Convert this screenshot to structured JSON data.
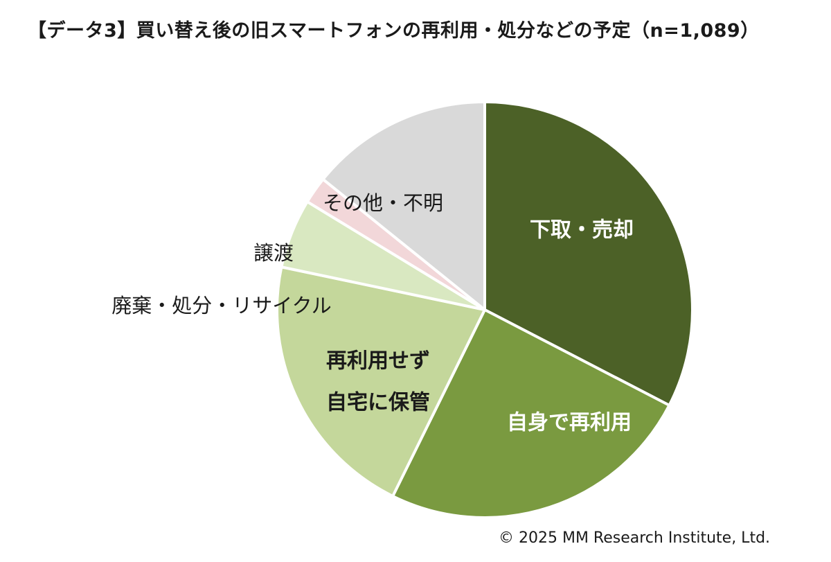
{
  "title": "【データ3】買い替え後の旧スマートフォンの再利用・処分などの予定（n=1,089）",
  "copyright": "© 2025 MM Research Institute, Ltd.",
  "chart_data": {
    "type": "pie",
    "title": "【データ3】買い替え後の旧スマートフォンの再利用・処分などの予定（n=1,089）",
    "unit": "%",
    "start": "12 o'clock, clockwise",
    "slices": [
      {
        "label": "下取・売却",
        "value": 32.6,
        "color": "#4c6127",
        "label_color": "#ffffff",
        "label_weight": "bold"
      },
      {
        "label": "自身で再利用",
        "value": 24.7,
        "color": "#7a9a40",
        "label_color": "#ffffff",
        "label_weight": "bold"
      },
      {
        "label": "再利用せず\n自宅に保管",
        "value": 21.0,
        "color": "#c4d79b",
        "label_color": "#1a1a1a",
        "label_weight": "bold"
      },
      {
        "label": "廃棄・処分・リサイクル",
        "value": 5.4,
        "color": "#d9e8c1",
        "label_color": "#1a1a1a",
        "label_weight": "normal"
      },
      {
        "label": "譲渡",
        "value": 2.1,
        "color": "#f2d7d9",
        "label_color": "#1a1a1a",
        "label_weight": "normal"
      },
      {
        "label": "その他・不明",
        "value": 14.2,
        "color": "#d9d9d9",
        "label_color": "#1a1a1a",
        "label_weight": "normal"
      }
    ]
  }
}
